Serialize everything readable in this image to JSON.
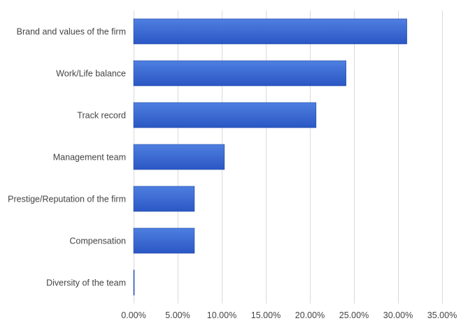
{
  "chart_data": {
    "type": "bar",
    "orientation": "horizontal",
    "categories": [
      "Brand and values of the firm",
      "Work/Life balance",
      "Track record",
      "Management team",
      "Prestige/Reputation of the firm",
      "Compensation",
      "Diversity of the team"
    ],
    "values": [
      31.0,
      24.1,
      20.7,
      10.3,
      6.9,
      6.9,
      0.0
    ],
    "xlim": [
      0,
      35
    ],
    "x_ticks": [
      0,
      5,
      10,
      15,
      20,
      25,
      30,
      35
    ],
    "x_tick_labels": [
      "0.00%",
      "5.00%",
      "10.00%",
      "15.00%",
      "20.00%",
      "25.00%",
      "30.00%",
      "35.00%"
    ],
    "title": "",
    "xlabel": "",
    "ylabel": "",
    "grid": "vertical",
    "legend": "none",
    "colors": {
      "bar_top": "#4f7fe0",
      "bar_bottom": "#2a57c4",
      "bar_edge": "#2348a8",
      "grid": "#d9d9d9",
      "text": "#444444"
    }
  }
}
